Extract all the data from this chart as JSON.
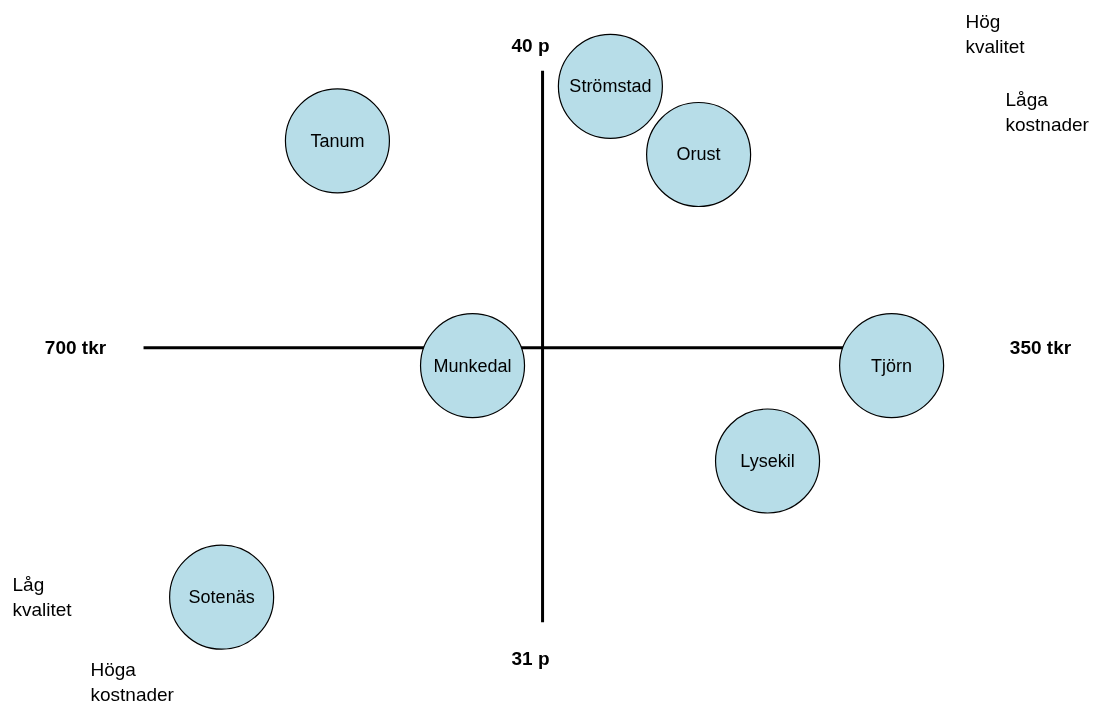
{
  "chart_data": {
    "type": "scatter",
    "marker": "circle",
    "grid": false,
    "legend": false,
    "xlim": [
      700,
      350
    ],
    "ylim": [
      31,
      40
    ],
    "xticks": [
      {
        "value": 700,
        "label": "700 tkr"
      },
      {
        "value": 350,
        "label": "350 tkr"
      }
    ],
    "yticks": [
      {
        "value": 31,
        "label": "31 p"
      },
      {
        "value": 40,
        "label": "40 p"
      }
    ],
    "series": [
      {
        "name": "Tanum",
        "color": "#b7dde8",
        "x": [
          605
        ],
        "values": [
          38.6
        ]
      },
      {
        "name": "Strömstad",
        "color": "#b7dde8",
        "x": [
          506
        ],
        "values": [
          39.4
        ]
      },
      {
        "name": "Orust",
        "color": "#b7dde8",
        "x": [
          474
        ],
        "values": [
          38.4
        ]
      },
      {
        "name": "Munkedal",
        "color": "#b7dde8",
        "x": [
          556
        ],
        "values": [
          35.3
        ]
      },
      {
        "name": "Tjörn",
        "color": "#b7dde8",
        "x": [
          404
        ],
        "values": [
          35.3
        ]
      },
      {
        "name": "Lysekil",
        "color": "#b7dde8",
        "x": [
          449
        ],
        "values": [
          33.9
        ]
      },
      {
        "name": "Sotenäs",
        "color": "#b7dde8",
        "x": [
          647
        ],
        "values": [
          31.9
        ]
      }
    ],
    "annotations": [
      "Hög\nkvalitet",
      "Låga\nkostnader",
      "Låg\nkvalitet",
      "Höga\nkostnader"
    ]
  }
}
